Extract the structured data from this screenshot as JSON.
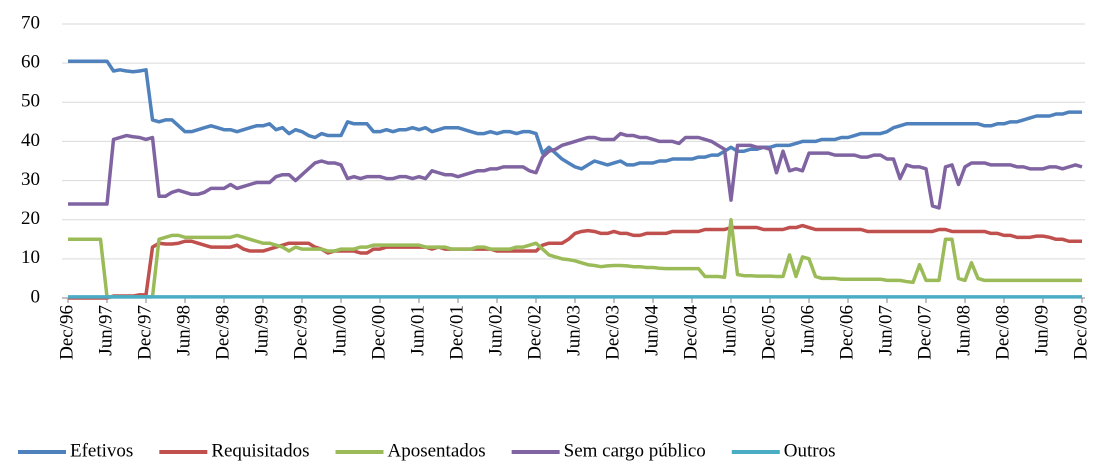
{
  "chart_data": {
    "type": "line",
    "grid": true,
    "legend": "bottom",
    "ylim": [
      0,
      70
    ],
    "yticks": [
      0,
      10,
      20,
      30,
      40,
      50,
      60,
      70
    ],
    "categories": [
      "Dec/96",
      null,
      null,
      null,
      null,
      null,
      "Jun/97",
      null,
      null,
      null,
      null,
      null,
      "Dec/97",
      null,
      null,
      null,
      null,
      null,
      "Jun/98",
      null,
      null,
      null,
      null,
      null,
      "Dec/98",
      null,
      null,
      null,
      null,
      null,
      "Jun/99",
      null,
      null,
      null,
      null,
      null,
      "Dec/99",
      null,
      null,
      null,
      null,
      null,
      "Jun/00",
      null,
      null,
      null,
      null,
      null,
      "Dec/00",
      null,
      null,
      null,
      null,
      null,
      "Jun/01",
      null,
      null,
      null,
      null,
      null,
      "Dec/01",
      null,
      null,
      null,
      null,
      null,
      "Jun/02",
      null,
      null,
      null,
      null,
      null,
      "Dec/02",
      null,
      null,
      null,
      null,
      null,
      "Jun/03",
      null,
      null,
      null,
      null,
      null,
      "Dec/03",
      null,
      null,
      null,
      null,
      null,
      "Jun/04",
      null,
      null,
      null,
      null,
      null,
      "Dec/04",
      null,
      null,
      null,
      null,
      null,
      "Jun/05",
      null,
      null,
      null,
      null,
      null,
      "Dec/05",
      null,
      null,
      null,
      null,
      null,
      "Jun/06",
      null,
      null,
      null,
      null,
      null,
      "Dec/06",
      null,
      null,
      null,
      null,
      null,
      "Jun/07",
      null,
      null,
      null,
      null,
      null,
      "Dec/07",
      null,
      null,
      null,
      null,
      null,
      "Jun/08",
      null,
      null,
      null,
      null,
      null,
      "Dec/08",
      null,
      null,
      null,
      null,
      null,
      "Jun/09",
      null,
      null,
      null,
      null,
      null,
      "Dec/09"
    ],
    "series": [
      {
        "name": "Efetivos",
        "color": "#4f81bd",
        "values": [
          60.5,
          60.5,
          60.5,
          60.5,
          60.5,
          60.5,
          60.5,
          58,
          58.3,
          58,
          57.8,
          58,
          58.3,
          45.5,
          45,
          45.5,
          45.5,
          44,
          42.5,
          42.5,
          43,
          43.5,
          44,
          43.5,
          43,
          43,
          42.5,
          43,
          43.5,
          44,
          44,
          44.5,
          43,
          43.5,
          42,
          43,
          42.5,
          41.5,
          41,
          42,
          41.5,
          41.5,
          41.5,
          45,
          44.5,
          44.5,
          44.5,
          42.5,
          42.5,
          43,
          42.5,
          43,
          43,
          43.5,
          43,
          43.5,
          42.5,
          43,
          43.5,
          43.5,
          43.5,
          43,
          42.5,
          42,
          42,
          42.5,
          42,
          42.5,
          42.5,
          42,
          42.5,
          42.5,
          42,
          37,
          38.5,
          37,
          35.5,
          34.5,
          33.5,
          33,
          34,
          35,
          34.5,
          34,
          34.5,
          35,
          34,
          34,
          34.5,
          34.5,
          34.5,
          35,
          35,
          35.5,
          35.5,
          35.5,
          35.5,
          36,
          36,
          36.5,
          36.5,
          37.5,
          38.5,
          37.5,
          37.5,
          38,
          38,
          38.5,
          38.5,
          39,
          39,
          39,
          39.5,
          40,
          40,
          40,
          40.5,
          40.5,
          40.5,
          41,
          41,
          41.5,
          42,
          42,
          42,
          42,
          42.5,
          43.5,
          44,
          44.5,
          44.5,
          44.5,
          44.5,
          44.5,
          44.5,
          44.5,
          44.5,
          44.5,
          44.5,
          44.5,
          44.5,
          44,
          44,
          44.5,
          44.5,
          45,
          45,
          45.5,
          46,
          46.5,
          46.5,
          46.5,
          47,
          47,
          47.5,
          47.5,
          47.5
        ]
      },
      {
        "name": "Requisitados",
        "color": "#c0504d",
        "values": [
          0,
          0,
          0,
          0,
          0,
          0,
          0,
          0.5,
          0.5,
          0.5,
          0.5,
          0.8,
          0.8,
          13,
          14,
          13.8,
          13.8,
          14,
          14.5,
          14.5,
          14,
          13.5,
          13,
          13,
          13,
          13,
          13.5,
          12.5,
          12,
          12,
          12,
          12.5,
          13,
          13.5,
          14,
          14,
          14,
          14,
          13,
          12.5,
          11.5,
          12,
          12,
          12,
          12,
          11.5,
          11.5,
          12.5,
          12.5,
          13,
          13,
          13,
          13,
          13,
          13,
          13,
          12.5,
          13,
          12.5,
          12.5,
          12.5,
          12.5,
          12.5,
          12.5,
          12.5,
          12.5,
          12,
          12,
          12,
          12,
          12,
          12,
          12,
          13.5,
          14,
          14,
          14,
          15,
          16.5,
          17,
          17.2,
          17,
          16.5,
          16.5,
          17,
          16.5,
          16.5,
          16,
          16,
          16.5,
          16.5,
          16.5,
          16.5,
          17,
          17,
          17,
          17,
          17,
          17.5,
          17.5,
          17.5,
          17.5,
          18,
          18,
          18,
          18,
          18,
          17.5,
          17.5,
          17.5,
          17.5,
          18,
          18,
          18.5,
          18,
          17.5,
          17.5,
          17.5,
          17.5,
          17.5,
          17.5,
          17.5,
          17.5,
          17,
          17,
          17,
          17,
          17,
          17,
          17,
          17,
          17,
          17,
          17,
          17.5,
          17.5,
          17,
          17,
          17,
          17,
          17,
          17,
          16.5,
          16.5,
          16,
          16,
          15.5,
          15.5,
          15.5,
          15.8,
          15.8,
          15.5,
          15,
          15,
          14.5,
          14.5,
          14.5
        ]
      },
      {
        "name": "Aposentados",
        "color": "#9bbb59",
        "values": [
          15,
          15,
          15,
          15,
          15,
          15,
          0.3,
          0.3,
          0.3,
          0.3,
          0.3,
          0.3,
          0.3,
          0.3,
          15,
          15.5,
          16,
          16,
          15.5,
          15.5,
          15.5,
          15.5,
          15.5,
          15.5,
          15.5,
          15.5,
          16,
          15.5,
          15,
          14.5,
          14,
          14,
          13.5,
          13,
          12,
          13,
          12.5,
          12.5,
          12.5,
          12.5,
          12,
          12,
          12.5,
          12.5,
          12.5,
          13,
          13,
          13.5,
          13.5,
          13.5,
          13.5,
          13.5,
          13.5,
          13.5,
          13.5,
          13,
          13,
          13,
          13,
          12.5,
          12.5,
          12.5,
          12.5,
          13,
          13,
          12.5,
          12.5,
          12.5,
          12.5,
          13,
          13,
          13.5,
          14,
          12.5,
          11,
          10.5,
          10,
          9.8,
          9.5,
          9,
          8.5,
          8.3,
          8,
          8.2,
          8.3,
          8.3,
          8.2,
          8,
          8,
          7.8,
          7.8,
          7.6,
          7.5,
          7.5,
          7.5,
          7.5,
          7.5,
          7.5,
          5.5,
          5.5,
          5.5,
          5.3,
          20,
          6,
          5.7,
          5.7,
          5.6,
          5.6,
          5.6,
          5.5,
          5.5,
          11,
          5.5,
          10.5,
          10,
          5.5,
          5,
          5,
          5,
          4.8,
          4.8,
          4.8,
          4.8,
          4.8,
          4.8,
          4.8,
          4.5,
          4.5,
          4.5,
          4.2,
          4,
          8.5,
          4.5,
          4.5,
          4.5,
          15,
          15,
          5,
          4.5,
          9,
          5,
          4.5,
          4.5,
          4.5,
          4.5,
          4.5,
          4.5,
          4.5,
          4.5,
          4.5,
          4.5,
          4.5,
          4.5,
          4.5,
          4.5,
          4.5,
          4.5
        ]
      },
      {
        "name": "Sem cargo público",
        "color": "#8064a2",
        "values": [
          24,
          24,
          24,
          24,
          24,
          24,
          24,
          40.5,
          41,
          41.5,
          41.2,
          41,
          40.5,
          41,
          26,
          26,
          27,
          27.5,
          27,
          26.5,
          26.5,
          27,
          28,
          28,
          28,
          29,
          28,
          28.5,
          29,
          29.5,
          29.5,
          29.5,
          31,
          31.5,
          31.5,
          30,
          31.5,
          33,
          34.5,
          35,
          34.5,
          34.5,
          34,
          30.5,
          31,
          30.5,
          31,
          31,
          31,
          30.5,
          30.5,
          31,
          31,
          30.5,
          31,
          30.5,
          32.5,
          32,
          31.5,
          31.5,
          31,
          31.5,
          32,
          32.5,
          32.5,
          33,
          33,
          33.5,
          33.5,
          33.5,
          33.5,
          32.5,
          32,
          36,
          37.5,
          38,
          39,
          39.5,
          40,
          40.5,
          41,
          41,
          40.5,
          40.5,
          40.5,
          42,
          41.5,
          41.5,
          41,
          41,
          40.5,
          40,
          40,
          40,
          39.5,
          41,
          41,
          41,
          40.5,
          40,
          39,
          38,
          25,
          39,
          39,
          39,
          38.5,
          38.5,
          38,
          32,
          37.5,
          32.5,
          33,
          32.5,
          37,
          37,
          37,
          37,
          36.5,
          36.5,
          36.5,
          36.5,
          36,
          36,
          36.5,
          36.5,
          35.5,
          35.5,
          30.5,
          34,
          33.5,
          33.5,
          33,
          23.5,
          23,
          33.5,
          34,
          29,
          33.5,
          34.5,
          34.5,
          34.5,
          34,
          34,
          34,
          34,
          33.5,
          33.5,
          33,
          33,
          33,
          33.5,
          33.5,
          33,
          33.5,
          34,
          33.5
        ]
      },
      {
        "name": "Outros",
        "color": "#4bacc6",
        "values": [
          0.3,
          0.3,
          0.3,
          0.3,
          0.3,
          0.3,
          0.3,
          0.3,
          0.3,
          0.3,
          0.3,
          0.3,
          0.3,
          0.3,
          0.3,
          0.3,
          0.3,
          0.3,
          0.3,
          0.3,
          0.3,
          0.3,
          0.3,
          0.3,
          0.3,
          0.3,
          0.3,
          0.3,
          0.3,
          0.3,
          0.3,
          0.3,
          0.3,
          0.3,
          0.3,
          0.3,
          0.3,
          0.3,
          0.3,
          0.3,
          0.3,
          0.3,
          0.3,
          0.3,
          0.3,
          0.3,
          0.3,
          0.3,
          0.3,
          0.3,
          0.3,
          0.3,
          0.3,
          0.3,
          0.3,
          0.3,
          0.3,
          0.3,
          0.3,
          0.3,
          0.3,
          0.3,
          0.3,
          0.3,
          0.3,
          0.3,
          0.3,
          0.3,
          0.3,
          0.3,
          0.3,
          0.3,
          0.3,
          0.3,
          0.3,
          0.3,
          0.3,
          0.3,
          0.3,
          0.3,
          0.3,
          0.3,
          0.3,
          0.3,
          0.3,
          0.3,
          0.3,
          0.3,
          0.3,
          0.3,
          0.3,
          0.3,
          0.3,
          0.3,
          0.3,
          0.3,
          0.3,
          0.3,
          0.3,
          0.3,
          0.3,
          0.3,
          0.3,
          0.3,
          0.3,
          0.3,
          0.3,
          0.3,
          0.3,
          0.3,
          0.3,
          0.3,
          0.3,
          0.3,
          0.3,
          0.3,
          0.3,
          0.3,
          0.3,
          0.3,
          0.3,
          0.3,
          0.3,
          0.3,
          0.3,
          0.3,
          0.3,
          0.3,
          0.3,
          0.3,
          0.3,
          0.3,
          0.3,
          0.3,
          0.3,
          0.3,
          0.3,
          0.3,
          0.3,
          0.3,
          0.3,
          0.3,
          0.3,
          0.3,
          0.3,
          0.3,
          0.3,
          0.3,
          0.3,
          0.3,
          0.3,
          0.3,
          0.3,
          0.3,
          0.3,
          0.3,
          0.3
        ]
      }
    ]
  }
}
